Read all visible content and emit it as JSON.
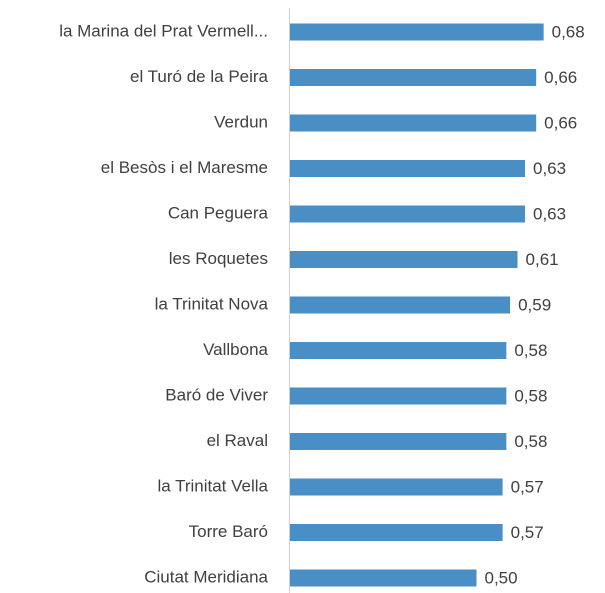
{
  "chart_data": {
    "type": "bar",
    "orientation": "horizontal",
    "categories": [
      "la Marina del Prat Vermell...",
      "el Turó de la Peira",
      "Verdun",
      "el Besòs i el Maresme",
      "Can Peguera",
      "les Roquetes",
      "la Trinitat Nova",
      "Vallbona",
      "Baró de Viver",
      "el Raval",
      "la Trinitat Vella",
      "Torre Baró",
      "Ciutat Meridiana"
    ],
    "values": [
      0.68,
      0.66,
      0.66,
      0.63,
      0.63,
      0.61,
      0.59,
      0.58,
      0.58,
      0.58,
      0.57,
      0.57,
      0.5
    ],
    "value_labels": [
      "0,68",
      "0,66",
      "0,66",
      "0,63",
      "0,63",
      "0,61",
      "0,59",
      "0,58",
      "0,58",
      "0,58",
      "0,57",
      "0,57",
      "0,50"
    ],
    "color": "#4a8ec6"
  }
}
